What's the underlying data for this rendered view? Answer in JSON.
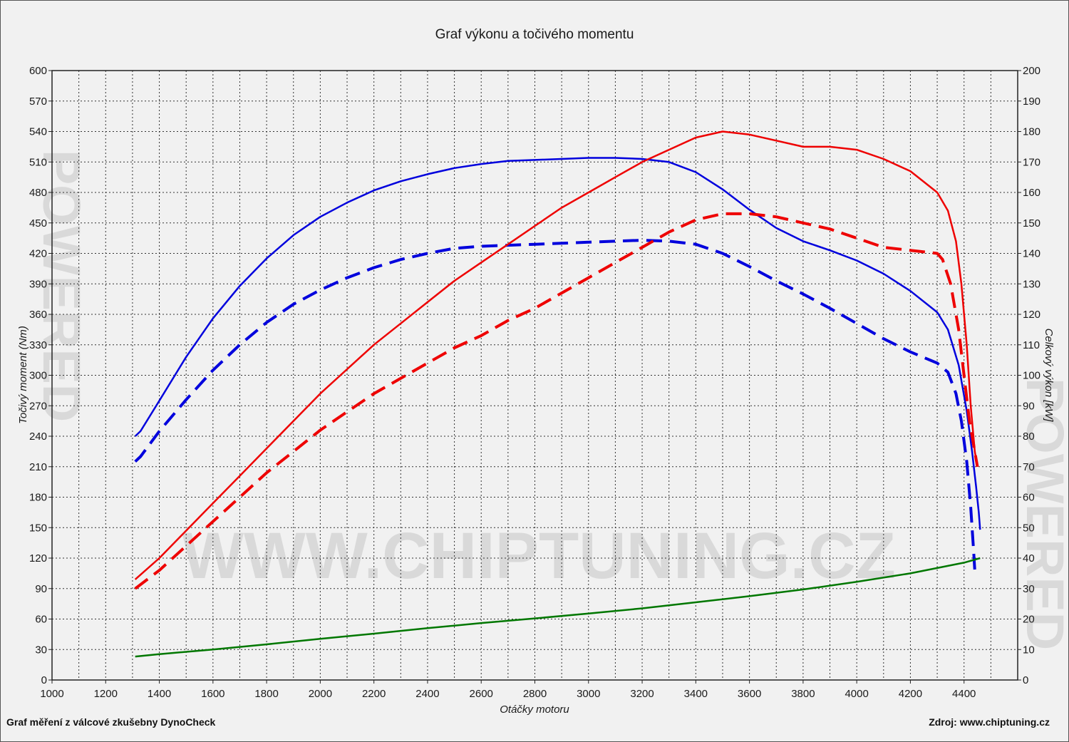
{
  "chart_data": {
    "type": "line",
    "title": "Graf výkonu a točivého momentu",
    "xlabel": "Otáčky motoru",
    "ylabel_left": "Točivý moment (Nm)",
    "ylabel_right": "Celkový výkon [kW]",
    "xlim": [
      1000,
      4600
    ],
    "ylim_left": [
      0,
      600
    ],
    "ylim_right": [
      0,
      200
    ],
    "x_ticks": [
      1000,
      1200,
      1400,
      1600,
      1800,
      2000,
      2200,
      2400,
      2600,
      2800,
      3000,
      3200,
      3400,
      3600,
      3800,
      4000,
      4200,
      4400
    ],
    "y_ticks_left": [
      0,
      30,
      60,
      90,
      120,
      150,
      180,
      210,
      240,
      270,
      300,
      330,
      360,
      390,
      420,
      450,
      480,
      510,
      540,
      570,
      600
    ],
    "y_ticks_right": [
      0,
      10,
      20,
      30,
      40,
      50,
      60,
      70,
      80,
      90,
      100,
      110,
      120,
      130,
      140,
      150,
      160,
      170,
      180,
      190,
      200
    ],
    "grid": true,
    "legend": "none",
    "series": [
      {
        "axis": "left",
        "color": "#0000dd",
        "style": "solid",
        "points": [
          [
            1310,
            240
          ],
          [
            1330,
            245
          ],
          [
            1400,
            275
          ],
          [
            1500,
            318
          ],
          [
            1600,
            356
          ],
          [
            1700,
            388
          ],
          [
            1800,
            415
          ],
          [
            1900,
            438
          ],
          [
            2000,
            456
          ],
          [
            2100,
            470
          ],
          [
            2200,
            482
          ],
          [
            2300,
            491
          ],
          [
            2400,
            498
          ],
          [
            2500,
            504
          ],
          [
            2600,
            508
          ],
          [
            2700,
            511
          ],
          [
            2800,
            512
          ],
          [
            2900,
            513
          ],
          [
            3000,
            514
          ],
          [
            3100,
            514
          ],
          [
            3200,
            513
          ],
          [
            3300,
            510
          ],
          [
            3400,
            500
          ],
          [
            3500,
            483
          ],
          [
            3600,
            463
          ],
          [
            3700,
            445
          ],
          [
            3800,
            432
          ],
          [
            3900,
            423
          ],
          [
            4000,
            413
          ],
          [
            4100,
            400
          ],
          [
            4200,
            383
          ],
          [
            4300,
            362
          ],
          [
            4340,
            345
          ],
          [
            4380,
            310
          ],
          [
            4410,
            265
          ],
          [
            4430,
            225
          ],
          [
            4445,
            190
          ],
          [
            4455,
            165
          ],
          [
            4460,
            148
          ]
        ]
      },
      {
        "axis": "left",
        "color": "#0000dd",
        "style": "dashed",
        "points": [
          [
            1310,
            215
          ],
          [
            1330,
            220
          ],
          [
            1400,
            245
          ],
          [
            1500,
            276
          ],
          [
            1600,
            305
          ],
          [
            1700,
            330
          ],
          [
            1800,
            352
          ],
          [
            1900,
            370
          ],
          [
            2000,
            384
          ],
          [
            2100,
            396
          ],
          [
            2200,
            406
          ],
          [
            2300,
            414
          ],
          [
            2400,
            420
          ],
          [
            2500,
            425
          ],
          [
            2600,
            427
          ],
          [
            2700,
            428
          ],
          [
            2800,
            429
          ],
          [
            2900,
            430
          ],
          [
            3000,
            431
          ],
          [
            3100,
            432
          ],
          [
            3200,
            433
          ],
          [
            3300,
            432
          ],
          [
            3400,
            429
          ],
          [
            3500,
            420
          ],
          [
            3600,
            407
          ],
          [
            3700,
            393
          ],
          [
            3800,
            380
          ],
          [
            3900,
            366
          ],
          [
            4000,
            351
          ],
          [
            4100,
            336
          ],
          [
            4200,
            323
          ],
          [
            4300,
            312
          ],
          [
            4340,
            303
          ],
          [
            4370,
            282
          ],
          [
            4390,
            255
          ],
          [
            4410,
            215
          ],
          [
            4425,
            170
          ],
          [
            4435,
            130
          ],
          [
            4440,
            108
          ]
        ]
      },
      {
        "axis": "right",
        "color": "#ee0000",
        "style": "solid",
        "points": [
          [
            1310,
            33
          ],
          [
            1400,
            40
          ],
          [
            1500,
            49
          ],
          [
            1600,
            58
          ],
          [
            1700,
            67
          ],
          [
            1800,
            76
          ],
          [
            1900,
            85
          ],
          [
            2000,
            94
          ],
          [
            2100,
            102
          ],
          [
            2200,
            110
          ],
          [
            2300,
            117
          ],
          [
            2400,
            124
          ],
          [
            2500,
            131
          ],
          [
            2600,
            137
          ],
          [
            2700,
            143
          ],
          [
            2800,
            149
          ],
          [
            2900,
            155
          ],
          [
            3000,
            160
          ],
          [
            3100,
            165
          ],
          [
            3200,
            170
          ],
          [
            3300,
            174
          ],
          [
            3400,
            178
          ],
          [
            3500,
            180
          ],
          [
            3600,
            179
          ],
          [
            3700,
            177
          ],
          [
            3800,
            175
          ],
          [
            3900,
            175
          ],
          [
            4000,
            174
          ],
          [
            4100,
            171
          ],
          [
            4200,
            167
          ],
          [
            4300,
            160
          ],
          [
            4340,
            154
          ],
          [
            4370,
            144
          ],
          [
            4390,
            130
          ],
          [
            4410,
            110
          ],
          [
            4425,
            90
          ],
          [
            4440,
            75
          ],
          [
            4450,
            70
          ]
        ]
      },
      {
        "axis": "right",
        "color": "#ee0000",
        "style": "dashed",
        "points": [
          [
            1310,
            30
          ],
          [
            1400,
            36
          ],
          [
            1500,
            44
          ],
          [
            1600,
            52
          ],
          [
            1700,
            60
          ],
          [
            1800,
            68
          ],
          [
            1900,
            75
          ],
          [
            2000,
            82
          ],
          [
            2100,
            88
          ],
          [
            2200,
            94
          ],
          [
            2300,
            99
          ],
          [
            2400,
            104
          ],
          [
            2500,
            109
          ],
          [
            2600,
            113
          ],
          [
            2700,
            118
          ],
          [
            2800,
            122
          ],
          [
            2900,
            127
          ],
          [
            3000,
            132
          ],
          [
            3100,
            137
          ],
          [
            3200,
            142
          ],
          [
            3300,
            147
          ],
          [
            3400,
            151
          ],
          [
            3500,
            153
          ],
          [
            3600,
            153
          ],
          [
            3700,
            152
          ],
          [
            3800,
            150
          ],
          [
            3900,
            148
          ],
          [
            4000,
            145
          ],
          [
            4100,
            142
          ],
          [
            4200,
            141
          ],
          [
            4300,
            140
          ],
          [
            4320,
            138
          ],
          [
            4350,
            130
          ],
          [
            4380,
            115
          ],
          [
            4400,
            100
          ],
          [
            4420,
            85
          ],
          [
            4440,
            75
          ],
          [
            4450,
            70
          ]
        ]
      },
      {
        "axis": "right",
        "color": "#007700",
        "style": "solid",
        "points": [
          [
            1310,
            7.7
          ],
          [
            1400,
            8.5
          ],
          [
            1600,
            10
          ],
          [
            1800,
            11.7
          ],
          [
            2000,
            13.5
          ],
          [
            2200,
            15.2
          ],
          [
            2400,
            17
          ],
          [
            2600,
            18.7
          ],
          [
            2800,
            20.2
          ],
          [
            3000,
            21.8
          ],
          [
            3200,
            23.5
          ],
          [
            3400,
            25.5
          ],
          [
            3600,
            27.5
          ],
          [
            3800,
            29.7
          ],
          [
            4000,
            32.2
          ],
          [
            4200,
            35
          ],
          [
            4400,
            38.5
          ],
          [
            4460,
            40
          ]
        ]
      }
    ]
  },
  "footer": {
    "left": "Graf měření z válcové zkušebny DynoCheck",
    "right": "Zdroj: www.chiptuning.cz"
  },
  "watermark": {
    "text": "WWW.CHIPTUNING.CZ",
    "side": "POWERED"
  }
}
